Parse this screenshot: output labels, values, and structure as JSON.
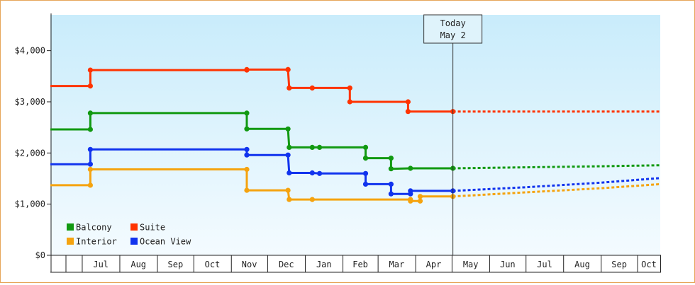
{
  "chart_data": {
    "type": "line",
    "title": "",
    "xlabel": "",
    "ylabel": "",
    "ylim": [
      0,
      4700
    ],
    "xlim": [
      "2015-06-05",
      "2016-10-20"
    ],
    "y_ticks": [
      0,
      1000,
      2000,
      3000,
      4000
    ],
    "y_tick_labels": [
      "$0",
      "$1,000",
      "$2,000",
      "$3,000",
      "$4,000"
    ],
    "month_ticks": [
      {
        "start": "2015-07-01",
        "label": "Jul"
      },
      {
        "start": "2015-08-01",
        "label": "Aug"
      },
      {
        "start": "2015-09-01",
        "label": "Sep"
      },
      {
        "start": "2015-10-01",
        "label": "Oct"
      },
      {
        "start": "2015-11-01",
        "label": "Nov"
      },
      {
        "start": "2015-12-01",
        "label": "Dec"
      },
      {
        "start": "2016-01-01",
        "label": "Jan"
      },
      {
        "start": "2016-02-01",
        "label": "Feb"
      },
      {
        "start": "2016-03-01",
        "label": "Mar"
      },
      {
        "start": "2016-04-01",
        "label": "Apr"
      },
      {
        "start": "2016-05-01",
        "label": "May"
      },
      {
        "start": "2016-06-01",
        "label": "Jun"
      },
      {
        "start": "2016-07-01",
        "label": "Jul"
      },
      {
        "start": "2016-08-01",
        "label": "Aug"
      },
      {
        "start": "2016-09-01",
        "label": "Sep"
      },
      {
        "start": "2016-10-01",
        "label": "Oct"
      }
    ],
    "today": {
      "date": "2016-05-02",
      "line1": "Today",
      "line2": "May 2"
    },
    "grid": false,
    "legend_position": "bottom-left",
    "series": [
      {
        "name": "Suite",
        "color": "#ff3300",
        "points": [
          [
            "2015-06-05",
            3310
          ],
          [
            "2015-07-08",
            3310
          ],
          [
            "2015-07-08",
            3620
          ],
          [
            "2015-11-14",
            3620
          ],
          [
            "2015-11-14",
            3630
          ],
          [
            "2015-12-18",
            3630
          ],
          [
            "2015-12-18",
            3630
          ],
          [
            "2015-12-19",
            3270
          ],
          [
            "2016-01-07",
            3270
          ],
          [
            "2016-02-07",
            3270
          ],
          [
            "2016-02-07",
            3000
          ],
          [
            "2016-03-26",
            3000
          ],
          [
            "2016-03-26",
            2810
          ],
          [
            "2016-05-02",
            2810
          ]
        ],
        "forecast": [
          [
            "2016-05-02",
            2810
          ],
          [
            "2016-10-20",
            2810
          ]
        ]
      },
      {
        "name": "Balcony",
        "color": "#119911",
        "points": [
          [
            "2015-06-05",
            2460
          ],
          [
            "2015-07-08",
            2460
          ],
          [
            "2015-07-08",
            2780
          ],
          [
            "2015-11-14",
            2780
          ],
          [
            "2015-11-14",
            2470
          ],
          [
            "2015-12-18",
            2470
          ],
          [
            "2015-12-19",
            2110
          ],
          [
            "2016-01-07",
            2110
          ],
          [
            "2016-01-13",
            2110
          ],
          [
            "2016-02-20",
            2110
          ],
          [
            "2016-02-20",
            1900
          ],
          [
            "2016-03-12",
            1900
          ],
          [
            "2016-03-12",
            1690
          ],
          [
            "2016-03-28",
            1700
          ],
          [
            "2016-05-02",
            1700
          ]
        ],
        "forecast": [
          [
            "2016-05-02",
            1700
          ],
          [
            "2016-07-01",
            1720
          ],
          [
            "2016-09-01",
            1740
          ],
          [
            "2016-10-20",
            1760
          ]
        ]
      },
      {
        "name": "Ocean View",
        "color": "#1133ee",
        "points": [
          [
            "2015-06-05",
            1780
          ],
          [
            "2015-07-08",
            1780
          ],
          [
            "2015-07-08",
            2070
          ],
          [
            "2015-11-14",
            2070
          ],
          [
            "2015-11-14",
            1960
          ],
          [
            "2015-12-18",
            1960
          ],
          [
            "2015-12-19",
            1610
          ],
          [
            "2016-01-07",
            1610
          ],
          [
            "2016-01-13",
            1600
          ],
          [
            "2016-02-20",
            1600
          ],
          [
            "2016-02-20",
            1390
          ],
          [
            "2016-03-12",
            1390
          ],
          [
            "2016-03-12",
            1200
          ],
          [
            "2016-03-28",
            1200
          ],
          [
            "2016-03-28",
            1260
          ],
          [
            "2016-05-02",
            1260
          ]
        ],
        "forecast": [
          [
            "2016-05-02",
            1260
          ],
          [
            "2016-07-01",
            1330
          ],
          [
            "2016-09-01",
            1420
          ],
          [
            "2016-10-20",
            1510
          ]
        ]
      },
      {
        "name": "Interior",
        "color": "#f5a30f",
        "points": [
          [
            "2015-06-05",
            1370
          ],
          [
            "2015-07-08",
            1370
          ],
          [
            "2015-07-08",
            1680
          ],
          [
            "2015-11-14",
            1680
          ],
          [
            "2015-11-14",
            1270
          ],
          [
            "2015-12-18",
            1270
          ],
          [
            "2015-12-19",
            1090
          ],
          [
            "2016-01-07",
            1090
          ],
          [
            "2016-03-28",
            1090
          ],
          [
            "2016-03-28",
            1060
          ],
          [
            "2016-04-05",
            1060
          ],
          [
            "2016-04-05",
            1150
          ],
          [
            "2016-05-02",
            1150
          ]
        ],
        "forecast": [
          [
            "2016-05-02",
            1150
          ],
          [
            "2016-07-01",
            1230
          ],
          [
            "2016-09-01",
            1310
          ],
          [
            "2016-10-20",
            1390
          ]
        ]
      }
    ],
    "legend": [
      {
        "name": "Balcony",
        "color": "#119911"
      },
      {
        "name": "Suite",
        "color": "#ff3300"
      },
      {
        "name": "Interior",
        "color": "#f5a30f"
      },
      {
        "name": "Ocean View",
        "color": "#1133ee"
      }
    ]
  }
}
